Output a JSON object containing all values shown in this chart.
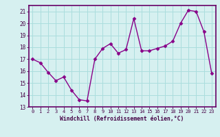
{
  "x": [
    0,
    1,
    2,
    3,
    4,
    5,
    6,
    7,
    8,
    9,
    10,
    11,
    12,
    13,
    14,
    15,
    16,
    17,
    18,
    19,
    20,
    21,
    22,
    23
  ],
  "y": [
    17.0,
    16.7,
    15.9,
    15.2,
    15.5,
    14.4,
    13.6,
    13.5,
    17.0,
    17.9,
    18.3,
    17.5,
    17.8,
    20.4,
    17.7,
    17.7,
    17.9,
    18.1,
    18.5,
    20.0,
    21.1,
    21.0,
    19.3,
    15.8
  ],
  "xlabel": "Windchill (Refroidissement éolien,°C)",
  "ylim": [
    13,
    21.5
  ],
  "yticks": [
    13,
    14,
    15,
    16,
    17,
    18,
    19,
    20,
    21
  ],
  "xticks": [
    0,
    1,
    2,
    3,
    4,
    5,
    6,
    7,
    8,
    9,
    10,
    11,
    12,
    13,
    14,
    15,
    16,
    17,
    18,
    19,
    20,
    21,
    22,
    23
  ],
  "line_color": "#880088",
  "marker": "D",
  "marker_size": 2.5,
  "bg_color": "#d6f0f0",
  "grid_color": "#aadddd",
  "axis_color": "#660066",
  "label_color": "#440044",
  "tick_color": "#440044",
  "font_family": "monospace"
}
